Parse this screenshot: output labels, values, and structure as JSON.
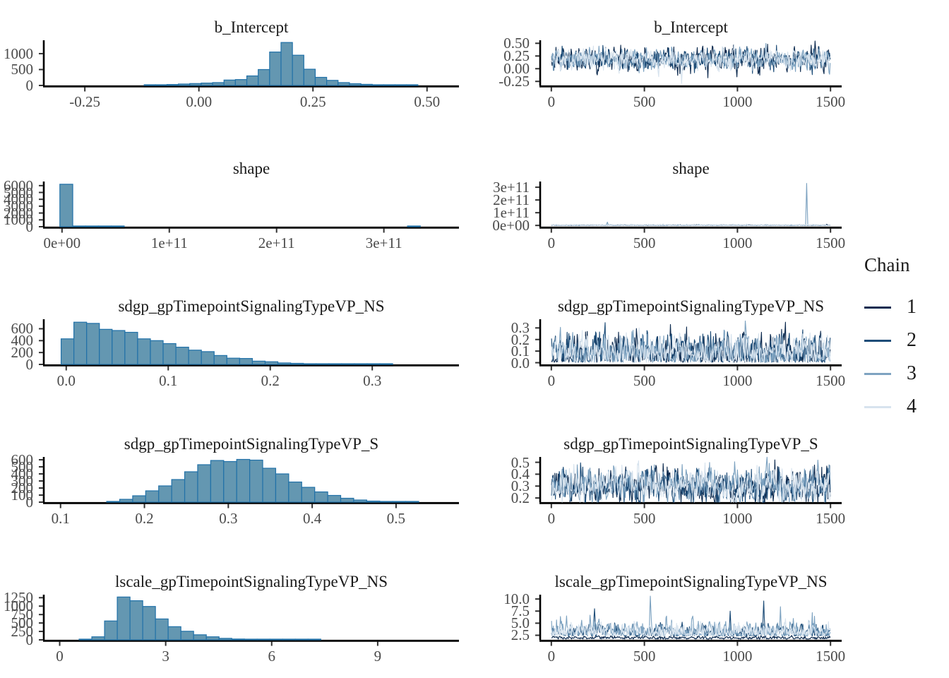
{
  "figure": {
    "description": "MCMC posterior diagnostics: marginal histograms (left) and per-chain trace plots (right) for five model parameters",
    "background": "#ffffff",
    "axis_color": "#000000",
    "tick_color": "#333333",
    "tick_label_color": "#4a4a4a",
    "title_color": "#1a1a1a"
  },
  "legend": {
    "title": "Chain",
    "items": [
      {
        "label": "1",
        "color": "#0f2c50"
      },
      {
        "label": "2",
        "color": "#1e4d78"
      },
      {
        "label": "3",
        "color": "#7ea3c1"
      },
      {
        "label": "4",
        "color": "#d7e3ee"
      }
    ]
  },
  "histogram_style": {
    "fill": "#6497b1",
    "stroke": "#2171a8"
  },
  "chart_data": [
    {
      "type": "histogram",
      "row": 1,
      "title": "b_Intercept",
      "xlim": [
        -0.34,
        0.57
      ],
      "ylim": [
        0,
        1420
      ],
      "xticks": {
        "values": [
          -0.25,
          0.0,
          0.25,
          0.5
        ],
        "labels": [
          "-0.25",
          "0.00",
          "0.25",
          "0.50"
        ]
      },
      "yticks": {
        "values": [
          0,
          500,
          1000
        ],
        "labels": [
          "0",
          "500",
          "1000"
        ]
      },
      "bin_start": -0.12,
      "bin_width": 0.025,
      "counts": [
        14,
        20,
        30,
        45,
        60,
        75,
        90,
        170,
        185,
        300,
        500,
        1050,
        1350,
        950,
        510,
        255,
        160,
        90,
        55,
        35,
        22,
        14,
        8,
        5
      ]
    },
    {
      "type": "trace",
      "row": 1,
      "title": "b_Intercept",
      "xlim": [
        -60,
        1560
      ],
      "ylim": [
        -0.33,
        0.56
      ],
      "xticks": {
        "values": [
          0,
          500,
          1000,
          1500
        ],
        "labels": [
          "0",
          "500",
          "1000",
          "1500"
        ]
      },
      "yticks": {
        "values": [
          -0.25,
          0.0,
          0.25,
          0.5
        ],
        "labels": [
          "-0.25",
          "0.00",
          "0.25",
          "0.50"
        ]
      },
      "n_iterations": 1500,
      "chains": [
        {
          "chain": 1,
          "mean": 0.18,
          "sd": 0.078
        },
        {
          "chain": 2,
          "mean": 0.18,
          "sd": 0.078
        },
        {
          "chain": 3,
          "mean": 0.18,
          "sd": 0.072
        },
        {
          "chain": 4,
          "mean": 0.18,
          "sd": 0.07
        }
      ],
      "spikes": [
        {
          "x": 700,
          "y": -0.29,
          "chain": 4
        },
        {
          "x": 980,
          "y": 0.47,
          "chain": 4
        },
        {
          "x": 840,
          "y": -0.18,
          "chain": 1
        }
      ]
    },
    {
      "type": "histogram",
      "row": 2,
      "title": "shape",
      "xlim": [
        -17000000000,
        370000000000
      ],
      "ylim": [
        0,
        6600
      ],
      "xticks": {
        "values": [
          0,
          100000000000,
          200000000000,
          300000000000
        ],
        "labels": [
          "0e+00",
          "1e+11",
          "2e+11",
          "3e+11"
        ]
      },
      "yticks": {
        "values": [
          0,
          1000,
          2000,
          3000,
          4000,
          5000,
          6000
        ],
        "labels": [
          "0",
          "1000",
          "2000",
          "3000",
          "4000",
          "5000",
          "6000"
        ]
      },
      "bin_start": -2000000000,
      "bin_width": 12000000000,
      "counts": [
        6200,
        6,
        2,
        1,
        1,
        0,
        0,
        0,
        0,
        0,
        0,
        0,
        0,
        0,
        0,
        0,
        0,
        0,
        0,
        0,
        0,
        0,
        0,
        0,
        0,
        0,
        0,
        1
      ]
    },
    {
      "type": "trace",
      "row": 2,
      "title": "shape",
      "xlim": [
        -60,
        1560
      ],
      "ylim": [
        -10000000000,
        345000000000
      ],
      "xticks": {
        "values": [
          0,
          500,
          1000,
          1500
        ],
        "labels": [
          "0",
          "500",
          "1000",
          "1500"
        ]
      },
      "yticks": {
        "values": [
          0,
          100000000000,
          200000000000,
          300000000000
        ],
        "labels": [
          "0e+00",
          "1e+11",
          "2e+11",
          "3e+11"
        ]
      },
      "n_iterations": 1500,
      "chains": [
        {
          "chain": 1,
          "mean": 1200000000,
          "sd": 1200000000,
          "min": 100000000
        },
        {
          "chain": 2,
          "mean": 1200000000,
          "sd": 1200000000,
          "min": 100000000
        },
        {
          "chain": 3,
          "mean": 1500000000,
          "sd": 1500000000,
          "min": 100000000
        },
        {
          "chain": 4,
          "mean": 2000000000,
          "sd": 2000000000,
          "min": 100000000
        }
      ],
      "spikes": [
        {
          "x": 1370,
          "y": 330000000000,
          "chain": 3
        },
        {
          "x": 300,
          "y": 26000000000,
          "chain": 3
        },
        {
          "x": 1480,
          "y": 9000000000,
          "chain": 1
        }
      ]
    },
    {
      "type": "histogram",
      "row": 3,
      "title": "sdgp_gpTimepointSignalingTypeVP_NS",
      "xlim": [
        -0.022,
        0.385
      ],
      "ylim": [
        0,
        760
      ],
      "xticks": {
        "values": [
          0.0,
          0.1,
          0.2,
          0.3
        ],
        "labels": [
          "0.0",
          "0.1",
          "0.2",
          "0.3"
        ]
      },
      "yticks": {
        "values": [
          0,
          200,
          400,
          600
        ],
        "labels": [
          "0",
          "200",
          "400",
          "600"
        ]
      },
      "bin_start": -0.005,
      "bin_width": 0.0125,
      "counts": [
        430,
        710,
        690,
        590,
        570,
        540,
        430,
        400,
        350,
        290,
        240,
        215,
        150,
        105,
        100,
        55,
        45,
        25,
        18,
        12,
        8,
        5,
        3,
        2,
        1,
        1
      ]
    },
    {
      "type": "trace",
      "row": 3,
      "title": "sdgp_gpTimepointSignalingTypeVP_NS",
      "xlim": [
        -60,
        1560
      ],
      "ylim": [
        -0.015,
        0.375
      ],
      "xticks": {
        "values": [
          0,
          500,
          1000,
          1500
        ],
        "labels": [
          "0",
          "500",
          "1000",
          "1500"
        ]
      },
      "yticks": {
        "values": [
          0.0,
          0.1,
          0.2,
          0.3
        ],
        "labels": [
          "0.0",
          "0.1",
          "0.2",
          "0.3"
        ]
      },
      "n_iterations": 1500,
      "chains": [
        {
          "chain": 1,
          "mean": 0.085,
          "sd": 0.058,
          "min": 0.003
        },
        {
          "chain": 2,
          "mean": 0.085,
          "sd": 0.058,
          "min": 0.003
        },
        {
          "chain": 3,
          "mean": 0.09,
          "sd": 0.055,
          "min": 0.003
        },
        {
          "chain": 4,
          "mean": 0.09,
          "sd": 0.05,
          "min": 0.003
        }
      ],
      "spikes": [
        {
          "x": 1040,
          "y": 0.36,
          "chain": 3
        },
        {
          "x": 640,
          "y": 0.33,
          "chain": 1
        },
        {
          "x": 470,
          "y": 0.3,
          "chain": 4
        }
      ]
    },
    {
      "type": "histogram",
      "row": 4,
      "title": "sdgp_gpTimepointSignalingTypeVP_S",
      "xlim": [
        0.08,
        0.575
      ],
      "ylim": [
        0,
        640
      ],
      "xticks": {
        "values": [
          0.1,
          0.2,
          0.3,
          0.4,
          0.5
        ],
        "labels": [
          "0.1",
          "0.2",
          "0.3",
          "0.4",
          "0.5"
        ]
      },
      "yticks": {
        "values": [
          0,
          100,
          200,
          300,
          400,
          500,
          600
        ],
        "labels": [
          "0",
          "100",
          "200",
          "300",
          "400",
          "500",
          "600"
        ]
      },
      "bin_start": 0.155,
      "bin_width": 0.0155,
      "counts": [
        8,
        40,
        90,
        160,
        230,
        320,
        430,
        530,
        590,
        575,
        605,
        595,
        480,
        400,
        285,
        210,
        145,
        95,
        55,
        30,
        15,
        8,
        4,
        2
      ]
    },
    {
      "type": "trace",
      "row": 4,
      "title": "sdgp_gpTimepointSignalingTypeVP_S",
      "xlim": [
        -60,
        1560
      ],
      "ylim": [
        0.165,
        0.545
      ],
      "xticks": {
        "values": [
          0,
          500,
          1000,
          1500
        ],
        "labels": [
          "0",
          "500",
          "1000",
          "1500"
        ]
      },
      "yticks": {
        "values": [
          0.2,
          0.3,
          0.4,
          0.5
        ],
        "labels": [
          "0.2",
          "0.3",
          "0.4",
          "0.5"
        ]
      },
      "n_iterations": 1500,
      "chains": [
        {
          "chain": 1,
          "mean": 0.3,
          "sd": 0.052
        },
        {
          "chain": 2,
          "mean": 0.3,
          "sd": 0.052
        },
        {
          "chain": 3,
          "mean": 0.3,
          "sd": 0.05
        },
        {
          "chain": 4,
          "mean": 0.3,
          "sd": 0.048
        }
      ],
      "spikes": [
        {
          "x": 1200,
          "y": 0.52,
          "chain": 1
        },
        {
          "x": 150,
          "y": 0.185,
          "chain": 2
        }
      ]
    },
    {
      "type": "histogram",
      "row": 5,
      "title": "lscale_gpTimepointSignalingTypeVP_NS",
      "xlim": [
        -0.45,
        11.3
      ],
      "ylim": [
        0,
        1340
      ],
      "xticks": {
        "values": [
          0,
          3,
          6,
          9
        ],
        "labels": [
          "0",
          "3",
          "6",
          "9"
        ]
      },
      "yticks": {
        "values": [
          0,
          250,
          500,
          750,
          1000,
          1250
        ],
        "labels": [
          "0",
          "250",
          "500",
          "750",
          "1000",
          "1250"
        ]
      },
      "bin_start": 0.55,
      "bin_width": 0.36,
      "counts": [
        4,
        90,
        560,
        1270,
        1160,
        990,
        620,
        390,
        255,
        150,
        90,
        45,
        25,
        12,
        6,
        3,
        2,
        1,
        1
      ]
    },
    {
      "type": "trace",
      "row": 5,
      "title": "lscale_gpTimepointSignalingTypeVP_NS",
      "xlim": [
        -60,
        1560
      ],
      "ylim": [
        1.55,
        10.9
      ],
      "xticks": {
        "values": [
          0,
          500,
          1000,
          1500
        ],
        "labels": [
          "0",
          "500",
          "1000",
          "1500"
        ]
      },
      "yticks": {
        "values": [
          2.5,
          5.0,
          7.5,
          10.0
        ],
        "labels": [
          "2.5",
          "5.0",
          "7.5",
          "10.0"
        ]
      },
      "n_iterations": 1500,
      "chains": [
        {
          "chain": 1,
          "mean": 2.0,
          "sd": 0.13,
          "min": 1.7
        },
        {
          "chain": 2,
          "mean": 3.1,
          "sd": 0.65,
          "min": 2.3
        },
        {
          "chain": 3,
          "mean": 3.3,
          "sd": 0.85,
          "min": 2.35
        },
        {
          "chain": 4,
          "mean": 3.2,
          "sd": 0.7,
          "min": 2.35
        }
      ],
      "spikes": [
        {
          "x": 530,
          "y": 10.6,
          "chain": 3
        },
        {
          "x": 1140,
          "y": 9.6,
          "chain": 2
        },
        {
          "x": 1230,
          "y": 8.4,
          "chain": 3
        },
        {
          "x": 230,
          "y": 8.0,
          "chain": 2
        },
        {
          "x": 960,
          "y": 7.5,
          "chain": 2
        },
        {
          "x": 80,
          "y": 6.5,
          "chain": 3
        }
      ]
    }
  ]
}
